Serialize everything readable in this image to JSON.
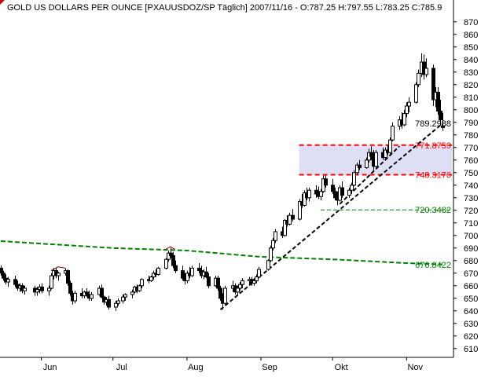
{
  "chart_data": {
    "type": "candlestick",
    "title": "GOLD US DOLLARS PER OUNCE [PXAUUSDOZ/SP  Täglich] 2007/11/16 - O:787.25 H:797.55 L:783.25 C:785.9",
    "ohlc_header": {
      "date": "2007/11/16",
      "open": 787.25,
      "high": 797.55,
      "low": 783.25,
      "close": 785.9
    },
    "y_axis": {
      "min": 603,
      "max": 878,
      "ticks": [
        610,
        620,
        630,
        640,
        650,
        660,
        670,
        680,
        690,
        700,
        710,
        720,
        730,
        740,
        750,
        760,
        770,
        780,
        790,
        800,
        810,
        820,
        830,
        840,
        850,
        860,
        870
      ],
      "position": "right"
    },
    "x_axis": {
      "start": "2007-05-15",
      "end": "2007-11-20",
      "ticks": [
        {
          "label": "Jun",
          "date": "2007-06-01"
        },
        {
          "label": "Jul",
          "date": "2007-07-01"
        },
        {
          "label": "Aug",
          "date": "2007-08-01"
        },
        {
          "label": "Sep",
          "date": "2007-09-01"
        },
        {
          "label": "Okt",
          "date": "2007-10-01"
        },
        {
          "label": "Nov",
          "date": "2007-11-01"
        }
      ]
    },
    "grid": false,
    "candles": [
      [
        "2007-05-15",
        674,
        676,
        668,
        670
      ],
      [
        "2007-05-16",
        670,
        672,
        664,
        666
      ],
      [
        "2007-05-17",
        666,
        669,
        661,
        663
      ],
      [
        "2007-05-18",
        663,
        667,
        659,
        665
      ],
      [
        "2007-05-21",
        665,
        668,
        659,
        661
      ],
      [
        "2007-05-22",
        661,
        664,
        656,
        658
      ],
      [
        "2007-05-23",
        658,
        662,
        655,
        660
      ],
      [
        "2007-05-24",
        660,
        662,
        654,
        656
      ],
      [
        "2007-05-25",
        656,
        660,
        653,
        658
      ],
      [
        "2007-05-29",
        658,
        660,
        652,
        655
      ],
      [
        "2007-05-30",
        655,
        659,
        652,
        657
      ],
      [
        "2007-05-31",
        657,
        661,
        654,
        659
      ],
      [
        "2007-06-01",
        659,
        662,
        654,
        656
      ],
      [
        "2007-06-04",
        656,
        660,
        652,
        658
      ],
      [
        "2007-06-05",
        658,
        670,
        657,
        668
      ],
      [
        "2007-06-06",
        668,
        674,
        665,
        672
      ],
      [
        "2007-06-07",
        672,
        674,
        666,
        668
      ],
      [
        "2007-06-08",
        668,
        671,
        664,
        670
      ],
      [
        "2007-06-11",
        670,
        674,
        668,
        672
      ],
      [
        "2007-06-12",
        672,
        673,
        660,
        662
      ],
      [
        "2007-06-13",
        662,
        664,
        652,
        654
      ],
      [
        "2007-06-14",
        654,
        656,
        645,
        648
      ],
      [
        "2007-06-15",
        648,
        656,
        646,
        654
      ],
      [
        "2007-06-18",
        654,
        658,
        650,
        652
      ],
      [
        "2007-06-19",
        652,
        656,
        650,
        655
      ],
      [
        "2007-06-20",
        655,
        658,
        651,
        653
      ],
      [
        "2007-06-21",
        653,
        656,
        648,
        650
      ],
      [
        "2007-06-22",
        650,
        655,
        648,
        653
      ],
      [
        "2007-06-25",
        653,
        660,
        652,
        658
      ],
      [
        "2007-06-26",
        658,
        661,
        650,
        651
      ],
      [
        "2007-06-27",
        651,
        652,
        645,
        647
      ],
      [
        "2007-06-28",
        647,
        651,
        644,
        649
      ],
      [
        "2007-06-29",
        649,
        652,
        641,
        643
      ],
      [
        "2007-07-02",
        643,
        648,
        640,
        646
      ],
      [
        "2007-07-03",
        646,
        650,
        644,
        648
      ],
      [
        "2007-07-05",
        648,
        653,
        646,
        651
      ],
      [
        "2007-07-06",
        651,
        654,
        648,
        653
      ],
      [
        "2007-07-09",
        653,
        657,
        650,
        655
      ],
      [
        "2007-07-10",
        655,
        660,
        654,
        659
      ],
      [
        "2007-07-11",
        659,
        661,
        654,
        656
      ],
      [
        "2007-07-12",
        656,
        661,
        655,
        660
      ],
      [
        "2007-07-13",
        660,
        666,
        658,
        665
      ],
      [
        "2007-07-16",
        665,
        668,
        662,
        664
      ],
      [
        "2007-07-17",
        664,
        668,
        663,
        667
      ],
      [
        "2007-07-18",
        667,
        672,
        665,
        670
      ],
      [
        "2007-07-19",
        670,
        673,
        667,
        669
      ],
      [
        "2007-07-20",
        669,
        675,
        668,
        674
      ],
      [
        "2007-07-23",
        674,
        682,
        673,
        681
      ],
      [
        "2007-07-24",
        681,
        688,
        679,
        686
      ],
      [
        "2007-07-25",
        686,
        690,
        682,
        684
      ],
      [
        "2007-07-26",
        684,
        687,
        674,
        676
      ],
      [
        "2007-07-27",
        676,
        680,
        670,
        672
      ],
      [
        "2007-07-30",
        672,
        676,
        664,
        666
      ],
      [
        "2007-07-31",
        666,
        670,
        661,
        664
      ],
      [
        "2007-08-01",
        664,
        672,
        662,
        670
      ],
      [
        "2007-08-02",
        670,
        675,
        666,
        668
      ],
      [
        "2007-08-03",
        668,
        676,
        667,
        674
      ],
      [
        "2007-08-06",
        674,
        678,
        670,
        672
      ],
      [
        "2007-08-07",
        672,
        676,
        666,
        668
      ],
      [
        "2007-08-08",
        668,
        673,
        665,
        671
      ],
      [
        "2007-08-09",
        671,
        675,
        666,
        667
      ],
      [
        "2007-08-10",
        667,
        670,
        658,
        660
      ],
      [
        "2007-08-13",
        660,
        668,
        659,
        666
      ],
      [
        "2007-08-14",
        666,
        668,
        656,
        658
      ],
      [
        "2007-08-15",
        658,
        660,
        648,
        650
      ],
      [
        "2007-08-16",
        650,
        654,
        641,
        646
      ],
      [
        "2007-08-17",
        646,
        660,
        645,
        658
      ],
      [
        "2007-08-20",
        658,
        664,
        655,
        660
      ],
      [
        "2007-08-21",
        660,
        662,
        653,
        655
      ],
      [
        "2007-08-22",
        655,
        660,
        652,
        658
      ],
      [
        "2007-08-23",
        658,
        663,
        656,
        661
      ],
      [
        "2007-08-24",
        661,
        666,
        658,
        664
      ],
      [
        "2007-08-27",
        664,
        667,
        661,
        665
      ],
      [
        "2007-08-28",
        665,
        667,
        660,
        662
      ],
      [
        "2007-08-29",
        662,
        666,
        660,
        664
      ],
      [
        "2007-08-30",
        664,
        669,
        662,
        667
      ],
      [
        "2007-08-31",
        667,
        675,
        666,
        673
      ],
      [
        "2007-09-04",
        673,
        681,
        672,
        680
      ],
      [
        "2007-09-05",
        680,
        692,
        679,
        690
      ],
      [
        "2007-09-06",
        690,
        698,
        688,
        696
      ],
      [
        "2007-09-07",
        696,
        705,
        694,
        703
      ],
      [
        "2007-09-10",
        703,
        707,
        698,
        700
      ],
      [
        "2007-09-11",
        700,
        713,
        699,
        712
      ],
      [
        "2007-09-12",
        712,
        716,
        707,
        709
      ],
      [
        "2007-09-13",
        709,
        718,
        708,
        716
      ],
      [
        "2007-09-14",
        716,
        721,
        711,
        713
      ],
      [
        "2007-09-17",
        713,
        729,
        712,
        727
      ],
      [
        "2007-09-18",
        727,
        733,
        722,
        724
      ],
      [
        "2007-09-19",
        724,
        736,
        723,
        734
      ],
      [
        "2007-09-20",
        734,
        738,
        728,
        730
      ],
      [
        "2007-09-21",
        730,
        738,
        727,
        736
      ],
      [
        "2007-09-24",
        736,
        740,
        730,
        733
      ],
      [
        "2007-09-25",
        733,
        739,
        729,
        731
      ],
      [
        "2007-09-26",
        731,
        737,
        728,
        735
      ],
      [
        "2007-09-27",
        735,
        748,
        734,
        745
      ],
      [
        "2007-09-28",
        745,
        748,
        738,
        740
      ],
      [
        "2007-10-01",
        740,
        745,
        733,
        735
      ],
      [
        "2007-10-02",
        735,
        738,
        728,
        730
      ],
      [
        "2007-10-03",
        730,
        735,
        724,
        728
      ],
      [
        "2007-10-04",
        728,
        740,
        727,
        738
      ],
      [
        "2007-10-05",
        738,
        743,
        730,
        732
      ],
      [
        "2007-10-08",
        732,
        738,
        730,
        736
      ],
      [
        "2007-10-09",
        736,
        742,
        733,
        740
      ],
      [
        "2007-10-10",
        740,
        752,
        739,
        750
      ],
      [
        "2007-10-11",
        750,
        758,
        748,
        756
      ],
      [
        "2007-10-12",
        756,
        760,
        752,
        754
      ],
      [
        "2007-10-15",
        754,
        762,
        753,
        760
      ],
      [
        "2007-10-16",
        760,
        769,
        758,
        766
      ],
      [
        "2007-10-17",
        766,
        771,
        760,
        763
      ],
      [
        "2007-10-18",
        763,
        768,
        752,
        755
      ],
      [
        "2007-10-19",
        755,
        768,
        754,
        766
      ],
      [
        "2007-10-22",
        766,
        770,
        760,
        762
      ],
      [
        "2007-10-23",
        762,
        770,
        760,
        768
      ],
      [
        "2007-10-24",
        768,
        772,
        764,
        766
      ],
      [
        "2007-10-25",
        766,
        778,
        765,
        776
      ],
      [
        "2007-10-26",
        776,
        790,
        775,
        787
      ],
      [
        "2007-10-29",
        787,
        795,
        784,
        792
      ],
      [
        "2007-10-30",
        792,
        798,
        785,
        788
      ],
      [
        "2007-10-31",
        788,
        800,
        787,
        797
      ],
      [
        "2007-11-01",
        797,
        806,
        794,
        803
      ],
      [
        "2007-11-02",
        803,
        810,
        798,
        806
      ],
      [
        "2007-11-05",
        806,
        822,
        805,
        820
      ],
      [
        "2007-11-06",
        820,
        832,
        818,
        829
      ],
      [
        "2007-11-07",
        829,
        845,
        826,
        838
      ],
      [
        "2007-11-08",
        838,
        844,
        824,
        828
      ],
      [
        "2007-11-09",
        828,
        841,
        826,
        833
      ],
      [
        "2007-11-12",
        833,
        836,
        803,
        808
      ],
      [
        "2007-11-13",
        808,
        818,
        802,
        814
      ],
      [
        "2007-11-14",
        814,
        818,
        796,
        799
      ],
      [
        "2007-11-15",
        799,
        808,
        788,
        792
      ],
      [
        "2007-11-16",
        787.25,
        797.55,
        783.25,
        785.9
      ]
    ],
    "moving_average_line": [
      [
        "2007-05-15",
        695.5
      ],
      [
        "2007-07-01",
        690
      ],
      [
        "2007-08-01",
        688
      ],
      [
        "2007-09-01",
        683
      ],
      [
        "2007-10-01",
        681
      ],
      [
        "2007-11-01",
        678
      ],
      [
        "2007-11-16",
        677
      ]
    ],
    "horizontal_levels": [
      {
        "value": 789.2988,
        "label": "789.2988",
        "color": "#000000",
        "style": "none"
      },
      {
        "value": 771.8759,
        "label": "771.8759",
        "color": "#ff0000",
        "style": "dashed"
      },
      {
        "value": 748.3176,
        "label": "748.3176",
        "color": "#ff0000",
        "style": "dashed"
      },
      {
        "value": 720.3482,
        "label": "720.3482",
        "color": "#008000",
        "style": "thin-dashed"
      },
      {
        "value": 676.8422,
        "label": "676.8422",
        "color": "#008000",
        "style": "none"
      }
    ],
    "band": {
      "from": 748.3176,
      "to": 771.8759,
      "color": "#dedef5"
    },
    "trendlines": [
      {
        "from": [
          "2007-08-15",
          641
        ],
        "to": [
          "2007-11-16",
          789
        ],
        "color": "#000000",
        "style": "dashed"
      },
      {
        "from": [
          "2007-10-04",
          725
        ],
        "to": [
          "2007-10-29",
          771
        ],
        "color": "#000000",
        "style": "dashed"
      }
    ],
    "colors": {
      "candle": "#000000",
      "up_fill": "#ffffff",
      "down_fill": "#000000",
      "accent_red": "#ff0000",
      "accent_green": "#008000",
      "top_corner_marker": "#cc0000",
      "small_marker": "#800000"
    }
  }
}
